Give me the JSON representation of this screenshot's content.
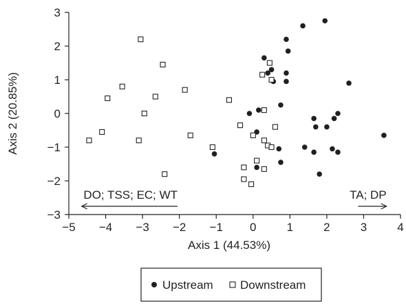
{
  "chart_data": {
    "type": "scatter",
    "xlabel": "Axis 1 (44.53%)",
    "ylabel": "Axis 2 (20.85%)",
    "xlim": [
      -5,
      4
    ],
    "ylim": [
      -3,
      3
    ],
    "xticks": [
      -5,
      -4,
      -3,
      -2,
      -1,
      0,
      1,
      2,
      3,
      4
    ],
    "yticks": [
      -3,
      -2,
      -1,
      0,
      1,
      2,
      3
    ],
    "xtick_labels": [
      "−5",
      "−4",
      "−3",
      "−2",
      "−1",
      "0",
      "1",
      "2",
      "3",
      "4"
    ],
    "ytick_labels": [
      "−3",
      "−2",
      "−1",
      "0",
      "1",
      "2",
      "3"
    ],
    "grid": false,
    "legend_position": "bottom",
    "annotations": {
      "left_arrow": "DO; TSS; EC; WT",
      "right_arrow": "TA; DP"
    },
    "series": [
      {
        "name": "Upstream",
        "marker": "filled-circle",
        "points": [
          [
            1.95,
            2.75
          ],
          [
            1.35,
            2.6
          ],
          [
            0.9,
            2.2
          ],
          [
            0.95,
            1.85
          ],
          [
            0.3,
            1.65
          ],
          [
            0.5,
            1.3
          ],
          [
            0.4,
            1.2
          ],
          [
            0.9,
            1.2
          ],
          [
            0.55,
            0.95
          ],
          [
            0.9,
            0.95
          ],
          [
            2.6,
            0.9
          ],
          [
            0.75,
            0.25
          ],
          [
            0.15,
            0.1
          ],
          [
            -0.1,
            0.0
          ],
          [
            2.3,
            0.0
          ],
          [
            1.65,
            -0.15
          ],
          [
            2.2,
            -0.15
          ],
          [
            1.7,
            -0.4
          ],
          [
            2.0,
            -0.4
          ],
          [
            0.1,
            -0.55
          ],
          [
            3.55,
            -0.65
          ],
          [
            1.4,
            -1.0
          ],
          [
            0.7,
            -1.05
          ],
          [
            2.15,
            -1.05
          ],
          [
            1.65,
            -1.15
          ],
          [
            2.3,
            -1.15
          ],
          [
            -1.05,
            -1.2
          ],
          [
            0.75,
            -1.45
          ],
          [
            0.1,
            -1.6
          ],
          [
            1.8,
            -1.8
          ]
        ]
      },
      {
        "name": "Downstream",
        "marker": "open-square",
        "points": [
          [
            -3.05,
            2.2
          ],
          [
            -2.45,
            1.45
          ],
          [
            0.45,
            1.5
          ],
          [
            0.25,
            1.15
          ],
          [
            -3.55,
            0.8
          ],
          [
            -1.85,
            0.7
          ],
          [
            -2.65,
            0.5
          ],
          [
            0.5,
            1.0
          ],
          [
            -3.95,
            0.45
          ],
          [
            -0.65,
            0.4
          ],
          [
            0.3,
            0.1
          ],
          [
            -2.95,
            0.0
          ],
          [
            -0.35,
            -0.35
          ],
          [
            0.6,
            -0.4
          ],
          [
            -4.1,
            -0.55
          ],
          [
            -1.7,
            -0.65
          ],
          [
            0.0,
            -0.65
          ],
          [
            -4.45,
            -0.8
          ],
          [
            -3.1,
            -0.8
          ],
          [
            0.3,
            -0.8
          ],
          [
            0.4,
            -0.95
          ],
          [
            -1.1,
            -1.0
          ],
          [
            0.5,
            -1.0
          ],
          [
            0.1,
            -1.4
          ],
          [
            -0.25,
            -1.6
          ],
          [
            0.3,
            -1.65
          ],
          [
            -2.4,
            -1.8
          ],
          [
            -0.25,
            -1.95
          ],
          [
            -0.05,
            -2.1
          ]
        ]
      }
    ]
  }
}
